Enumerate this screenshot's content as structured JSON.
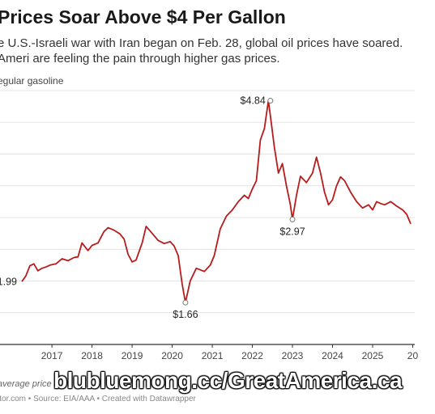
{
  "header": {
    "title": "Prices Soar Above $4 Per Gallon",
    "subtitle": "e U.S.-Israeli war with Iran began on Feb. 28, global oil prices have soared. Ameri are feeling the pain through higher gas prices.",
    "ylabel": "egular gasoline"
  },
  "footer": {
    "note": "average price",
    "source": "ltor.com • Source: EIA/AAA • Created with Datawrapper"
  },
  "watermark": "blubluemong.cc/GreatAmerica.ca",
  "colors": {
    "line": "#b71c1c",
    "grid": "#e4e4e4",
    "axis": "#333333"
  },
  "chart_data": {
    "type": "line",
    "ylabel": "egular gasoline",
    "x_ticks": [
      "2017",
      "2018",
      "2019",
      "2020",
      "2021",
      "2022",
      "2023",
      "2024",
      "2025",
      "20"
    ],
    "xlim": [
      2016.25,
      2025.95
    ],
    "ylim": [
      1.0,
      5.0
    ],
    "grid": true,
    "series": [
      {
        "x": [
          2016.25,
          2016.35,
          2016.45,
          2016.55,
          2016.65,
          2016.75,
          2016.85,
          2016.95,
          2017.1,
          2017.25,
          2017.4,
          2017.55,
          2017.65,
          2017.75,
          2017.9,
          2018.0,
          2018.15,
          2018.3,
          2018.4,
          2018.55,
          2018.7,
          2018.8,
          2018.9,
          2019.0,
          2019.1,
          2019.25,
          2019.35,
          2019.5,
          2019.65,
          2019.8,
          2019.95,
          2020.05,
          2020.15,
          2020.25,
          2020.33,
          2020.45,
          2020.6,
          2020.8,
          2020.95,
          2021.05,
          2021.2,
          2021.35,
          2021.5,
          2021.65,
          2021.8,
          2021.9,
          2022.0,
          2022.1,
          2022.2,
          2022.3,
          2022.4,
          2022.45,
          2022.55,
          2022.65,
          2022.75,
          2022.85,
          2022.95,
          2023.0,
          2023.1,
          2023.2,
          2023.35,
          2023.5,
          2023.6,
          2023.7,
          2023.8,
          2023.9,
          2024.0,
          2024.1,
          2024.2,
          2024.3,
          2024.45,
          2024.6,
          2024.75,
          2024.9,
          2025.0,
          2025.1,
          2025.2,
          2025.3,
          2025.45,
          2025.6,
          2025.75,
          2025.85,
          2025.95
        ],
        "y": [
          1.99,
          2.08,
          2.24,
          2.27,
          2.16,
          2.2,
          2.22,
          2.25,
          2.27,
          2.35,
          2.32,
          2.37,
          2.38,
          2.6,
          2.48,
          2.56,
          2.6,
          2.78,
          2.84,
          2.8,
          2.74,
          2.66,
          2.42,
          2.3,
          2.33,
          2.6,
          2.86,
          2.75,
          2.64,
          2.59,
          2.62,
          2.55,
          2.4,
          1.95,
          1.66,
          2.0,
          2.2,
          2.15,
          2.25,
          2.4,
          2.82,
          3.02,
          3.12,
          3.25,
          3.35,
          3.3,
          3.45,
          3.58,
          4.22,
          4.4,
          4.84,
          4.6,
          4.1,
          3.7,
          3.85,
          3.5,
          3.2,
          2.97,
          3.35,
          3.65,
          3.55,
          3.7,
          3.95,
          3.7,
          3.4,
          3.2,
          3.28,
          3.5,
          3.64,
          3.58,
          3.4,
          3.25,
          3.15,
          3.2,
          3.12,
          3.25,
          3.22,
          3.2,
          3.25,
          3.18,
          3.12,
          3.05,
          2.9
        ]
      }
    ],
    "annotations": [
      {
        "label": "$4.84",
        "x": 2022.45,
        "y": 4.84,
        "pos": "left"
      },
      {
        "label": "$2.97",
        "x": 2023.0,
        "y": 2.97,
        "pos": "below"
      },
      {
        "label": "$1.66",
        "x": 2020.33,
        "y": 1.66,
        "pos": "below"
      },
      {
        "label": "1.99",
        "x": 2016.25,
        "y": 1.99,
        "pos": "left"
      }
    ]
  }
}
